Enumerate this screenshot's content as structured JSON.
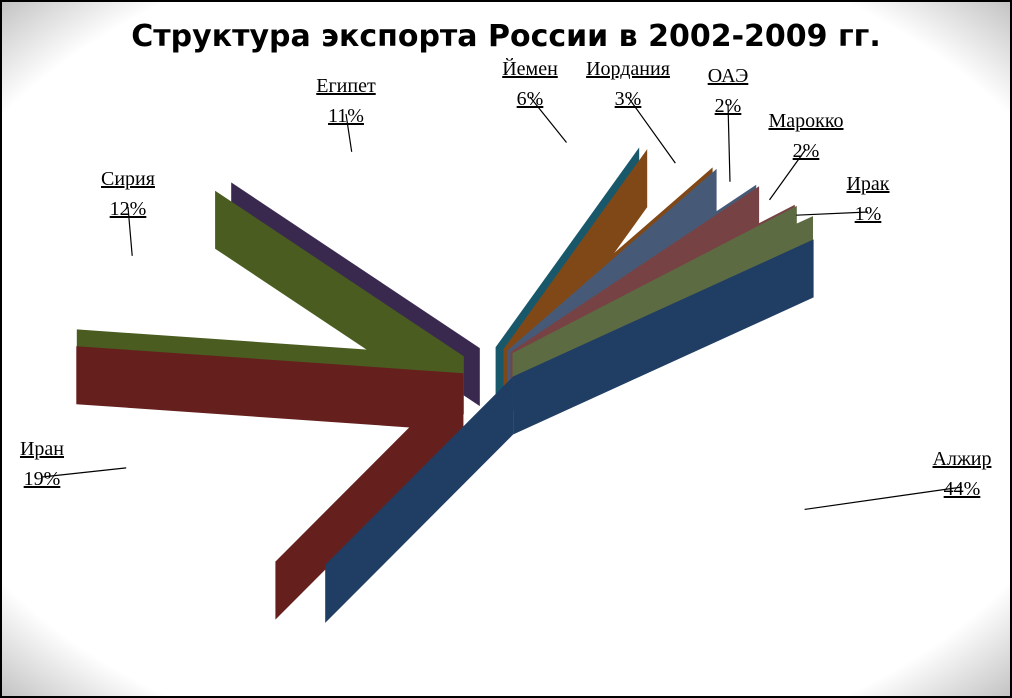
{
  "chart_data": {
    "type": "pie",
    "title": "Структура экспорта России в 2002-2009 гг.",
    "categories": [
      "Йемен",
      "Иордания",
      "ОАЭ",
      "Марокко",
      "Ирак",
      "Алжир",
      "Иран",
      "Сирия",
      "Египет"
    ],
    "values": [
      6,
      3,
      2,
      2,
      1,
      44,
      19,
      12,
      11
    ],
    "value_labels": [
      "6%",
      "3%",
      "2%",
      "2%",
      "1%",
      "44%",
      "19%",
      "12%",
      "11%"
    ],
    "colors": [
      "#2e9fc0",
      "#e8822a",
      "#7fa4d8",
      "#d9787a",
      "#a9c27a",
      "#3a6fb5",
      "#b83a37",
      "#86a83a",
      "#6a4a8e"
    ]
  }
}
